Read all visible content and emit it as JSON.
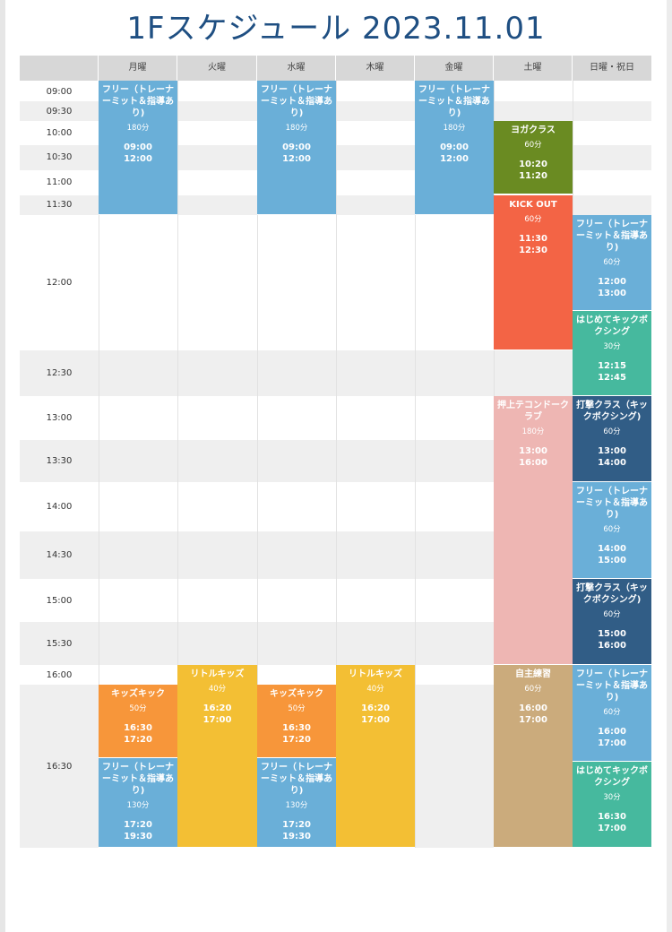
{
  "title": "1Fスケジュール 2023.11.01",
  "days": [
    "月曜",
    "火曜",
    "水曜",
    "木曜",
    "金曜",
    "土曜",
    "日曜・祝日"
  ],
  "times": [
    "09:00",
    "09:30",
    "10:00",
    "10:30",
    "11:00",
    "11:30",
    "12:00",
    "12:30",
    "13:00",
    "13:30",
    "14:00",
    "14:30",
    "15:00",
    "15:30",
    "16:00",
    "16:30"
  ],
  "colors": {
    "free": "#6aafd8",
    "yoga": "#6a8b22",
    "kickout": "#f36445",
    "hajimete": "#46b99e",
    "dageki": "#315d86",
    "taekwondo": "#eeb6b3",
    "jishu": "#cbab7c",
    "kids": "#f7963a",
    "little": "#f3bf34"
  },
  "events": [
    {
      "name": "フリー（トレーナーミット＆指導あり)",
      "dur": "180分",
      "start": "09:00",
      "end": "12:00",
      "color": "free"
    },
    {
      "name": "フリー（トレーナーミット＆指導あり)",
      "dur": "180分",
      "start": "09:00",
      "end": "12:00",
      "color": "free"
    },
    {
      "name": "フリー（トレーナーミット＆指導あり)",
      "dur": "180分",
      "start": "09:00",
      "end": "12:00",
      "color": "free"
    },
    {
      "name": "ヨガクラス",
      "dur": "60分",
      "start": "10:20",
      "end": "11:20",
      "color": "yoga"
    },
    {
      "name": "KICK OUT",
      "dur": "60分",
      "start": "11:30",
      "end": "12:30",
      "color": "kickout"
    },
    {
      "name": "フリー（トレーナーミット＆指導あり)",
      "dur": "60分",
      "start": "12:00",
      "end": "13:00",
      "color": "free"
    },
    {
      "name": "はじめてキックボクシング",
      "dur": "30分",
      "start": "12:15",
      "end": "12:45",
      "color": "hajimete"
    },
    {
      "name": "押上テコンドークラブ",
      "dur": "180分",
      "start": "13:00",
      "end": "16:00",
      "color": "taekwondo"
    },
    {
      "name": "打撃クラス（キックボクシング)",
      "dur": "60分",
      "start": "13:00",
      "end": "14:00",
      "color": "dageki"
    },
    {
      "name": "フリー（トレーナーミット＆指導あり)",
      "dur": "60分",
      "start": "14:00",
      "end": "15:00",
      "color": "free"
    },
    {
      "name": "打撃クラス（キックボクシング)",
      "dur": "60分",
      "start": "15:00",
      "end": "16:00",
      "color": "dageki"
    },
    {
      "name": "リトルキッズ",
      "dur": "40分",
      "start": "16:20",
      "end": "17:00",
      "color": "little"
    },
    {
      "name": "リトルキッズ",
      "dur": "40分",
      "start": "16:20",
      "end": "17:00",
      "color": "little"
    },
    {
      "name": "自主練習",
      "dur": "60分",
      "start": "16:00",
      "end": "17:00",
      "color": "jishu"
    },
    {
      "name": "フリー（トレーナーミット＆指導あり)",
      "dur": "60分",
      "start": "16:00",
      "end": "17:00",
      "color": "free"
    },
    {
      "name": "キッズキック",
      "dur": "50分",
      "start": "16:30",
      "end": "17:20",
      "color": "kids"
    },
    {
      "name": "キッズキック",
      "dur": "50分",
      "start": "16:30",
      "end": "17:20",
      "color": "kids"
    },
    {
      "name": "フリー（トレーナーミット＆指導あり)",
      "dur": "130分",
      "start": "17:20",
      "end": "19:30",
      "color": "free"
    },
    {
      "name": "フリー（トレーナーミット＆指導あり)",
      "dur": "130分",
      "start": "17:20",
      "end": "19:30",
      "color": "free"
    },
    {
      "name": "はじめてキックボクシング",
      "dur": "30分",
      "start": "16:30",
      "end": "17:00",
      "color": "hajimete"
    }
  ]
}
